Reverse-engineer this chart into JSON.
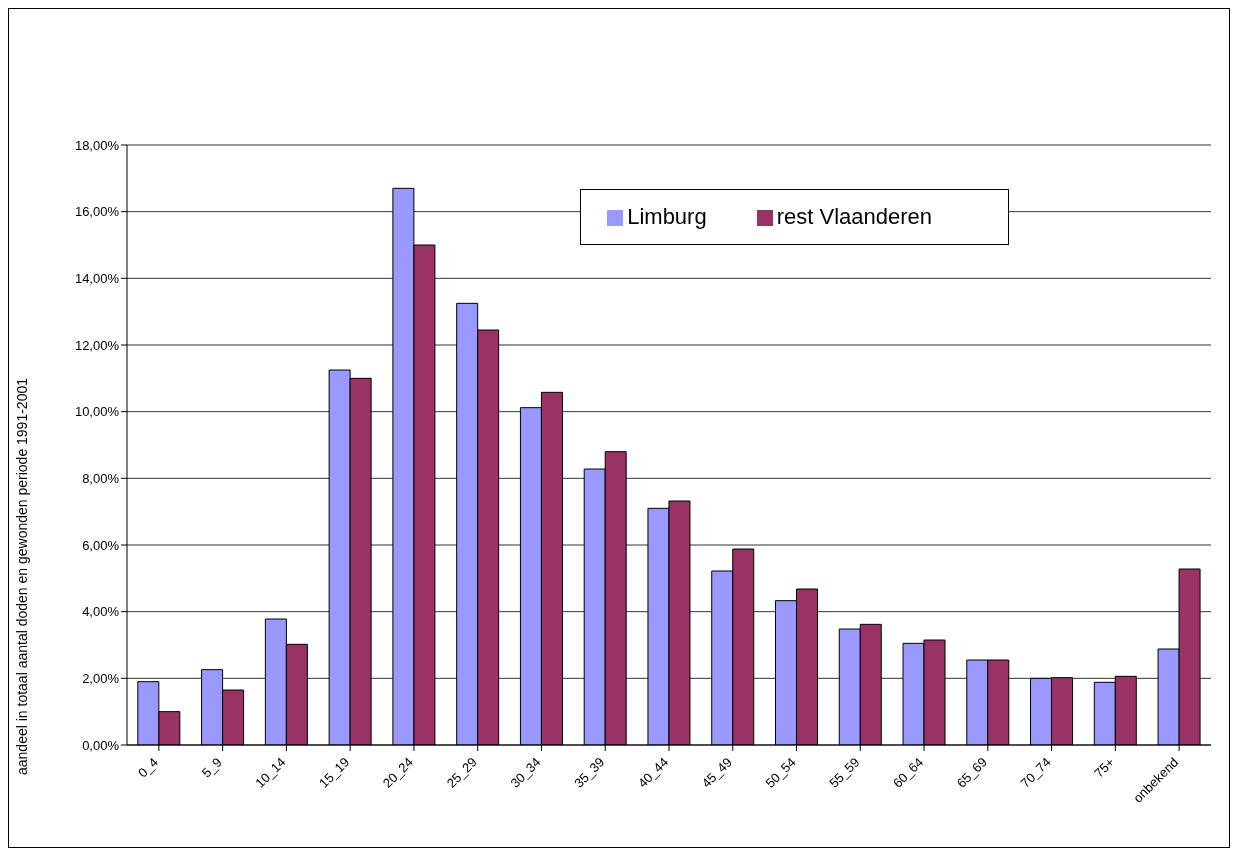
{
  "chart_data": {
    "type": "bar",
    "ylabel": "aandeel in totaal aantal doden en gewonden periode 1991-2001",
    "categories": [
      "0_4",
      "5_9",
      "10_14",
      "15_19",
      "20_24",
      "25_29",
      "30_34",
      "35_39",
      "40_44",
      "45_49",
      "50_54",
      "55_59",
      "60_64",
      "65_69",
      "70_74",
      "75+",
      "onbekend"
    ],
    "series": [
      {
        "name": "Limburg",
        "color": "#9999ff",
        "values": [
          1.9,
          2.26,
          3.78,
          11.25,
          16.7,
          13.25,
          10.12,
          8.28,
          7.1,
          5.22,
          4.33,
          3.48,
          3.05,
          2.55,
          2.0,
          1.88,
          2.88
        ]
      },
      {
        "name": "rest Vlaanderen",
        "color": "#993366",
        "values": [
          1.0,
          1.65,
          3.02,
          11.0,
          15.0,
          12.45,
          10.58,
          8.8,
          7.32,
          5.88,
          4.68,
          3.62,
          3.15,
          2.55,
          2.02,
          2.06,
          5.28
        ]
      }
    ],
    "ylim": [
      0,
      18
    ],
    "yticks": [
      {
        "value": 0,
        "label": "0,00%"
      },
      {
        "value": 2,
        "label": "2,00%"
      },
      {
        "value": 4,
        "label": "4,00%"
      },
      {
        "value": 6,
        "label": "6,00%"
      },
      {
        "value": 8,
        "label": "8,00%"
      },
      {
        "value": 10,
        "label": "10,00%"
      },
      {
        "value": 12,
        "label": "12,00%"
      },
      {
        "value": 14,
        "label": "14,00%"
      },
      {
        "value": 16,
        "label": "16,00%"
      },
      {
        "value": 18,
        "label": "18,00%"
      }
    ],
    "grid": "y",
    "legend": "top right"
  }
}
